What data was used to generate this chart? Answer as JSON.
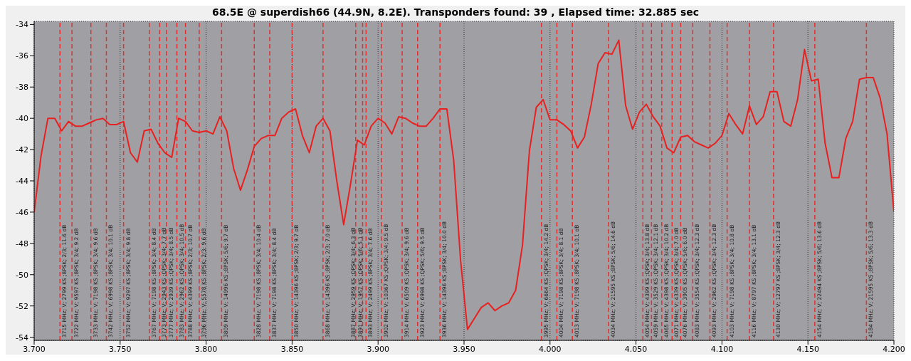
{
  "chart_data": {
    "type": "line",
    "title": "68.5E @ superdish66 (44.9N, 8.2E). Transponders found: 39 , Elapsed time: 32.885 sec",
    "x": [
      3.7,
      3.704,
      3.708,
      3.712,
      3.716,
      3.72,
      3.724,
      3.728,
      3.732,
      3.736,
      3.74,
      3.744,
      3.748,
      3.752,
      3.756,
      3.76,
      3.764,
      3.768,
      3.772,
      3.776,
      3.78,
      3.784,
      3.788,
      3.792,
      3.796,
      3.8,
      3.804,
      3.808,
      3.812,
      3.816,
      3.82,
      3.824,
      3.828,
      3.832,
      3.836,
      3.84,
      3.844,
      3.848,
      3.852,
      3.856,
      3.86,
      3.864,
      3.868,
      3.872,
      3.876,
      3.88,
      3.884,
      3.888,
      3.892,
      3.896,
      3.9,
      3.904,
      3.908,
      3.912,
      3.916,
      3.92,
      3.924,
      3.928,
      3.932,
      3.936,
      3.94,
      3.944,
      3.948,
      3.952,
      3.956,
      3.96,
      3.964,
      3.968,
      3.972,
      3.976,
      3.98,
      3.984,
      3.988,
      3.992,
      3.996,
      4.0,
      4.004,
      4.008,
      4.012,
      4.016,
      4.02,
      4.024,
      4.028,
      4.032,
      4.036,
      4.04,
      4.044,
      4.048,
      4.052,
      4.056,
      4.06,
      4.064,
      4.068,
      4.072,
      4.076,
      4.08,
      4.084,
      4.088,
      4.092,
      4.096,
      4.1,
      4.104,
      4.108,
      4.112,
      4.116,
      4.12,
      4.124,
      4.128,
      4.132,
      4.136,
      4.14,
      4.144,
      4.148,
      4.152,
      4.156,
      4.16,
      4.164,
      4.168,
      4.172,
      4.176,
      4.18,
      4.184,
      4.188,
      4.192,
      4.196,
      4.2
    ],
    "series": [
      {
        "color": "#e82020",
        "values": [
          -46,
          -42.4,
          -40,
          -40,
          -40.8,
          -40.2,
          -40.5,
          -40.5,
          -40.3,
          -40.1,
          -40,
          -40.4,
          -40.4,
          -40.2,
          -42.2,
          -42.8,
          -40.8,
          -40.7,
          -41.6,
          -42.2,
          -42.5,
          -40,
          -40.2,
          -40.8,
          -40.9,
          -40.8,
          -41,
          -39.9,
          -40.8,
          -43.2,
          -44.6,
          -43.3,
          -41.8,
          -41.3,
          -41.1,
          -41.1,
          -40,
          -39.6,
          -39.4,
          -41.1,
          -42.2,
          -40.5,
          -40,
          -40.8,
          -44,
          -46.8,
          -44.2,
          -41.4,
          -41.7,
          -40.5,
          -40,
          -40.3,
          -41,
          -39.9,
          -40,
          -40.3,
          -40.5,
          -40.5,
          -40,
          -39.4,
          -39.4,
          -42.7,
          -49.1,
          -53.5,
          -52.8,
          -52.1,
          -51.8,
          -52.3,
          -52,
          -51.8,
          -51,
          -48.1,
          -42.1,
          -39.3,
          -38.8,
          -40.1,
          -40.1,
          -40.4,
          -40.8,
          -41.9,
          -41.2,
          -39.1,
          -36.5,
          -35.8,
          -35.9,
          -35,
          -39.2,
          -40.7,
          -39.6,
          -39.1,
          -39.9,
          -40.5,
          -41.9,
          -42.2,
          -41.2,
          -41.1,
          -41.5,
          -41.7,
          -41.9,
          -41.6,
          -41.1,
          -39.7,
          -40.4,
          -41,
          -39.2,
          -40.4,
          -39.9,
          -38.3,
          -38.3,
          -40.2,
          -40.5,
          -38.8,
          -35.6,
          -37.6,
          -37.5,
          -41.6,
          -43.8,
          -43.8,
          -41.3,
          -40.2,
          -37.5,
          -37.4,
          -37.4,
          -38.7,
          -41,
          -46
        ]
      }
    ],
    "xlim": [
      3.7,
      4.2
    ],
    "xticks": [
      {
        "value": 3.7,
        "label": "3.700"
      },
      {
        "value": 3.75,
        "label": "3.750"
      },
      {
        "value": 3.8,
        "label": "3.800"
      },
      {
        "value": 3.85,
        "label": "3.850"
      },
      {
        "value": 3.9,
        "label": "3.900"
      },
      {
        "value": 3.95,
        "label": "3.950"
      },
      {
        "value": 4.0,
        "label": "4.000"
      },
      {
        "value": 4.05,
        "label": "4.050"
      },
      {
        "value": 4.1,
        "label": "4.100"
      },
      {
        "value": 4.15,
        "label": "4.150"
      },
      {
        "value": 4.2,
        "label": "4.200"
      }
    ],
    "ylim": [
      -54.2,
      -33.8
    ],
    "yticks": [
      -54,
      -52,
      -50,
      -48,
      -46,
      -44,
      -42,
      -40,
      -38,
      -36,
      -34
    ],
    "grid": true,
    "ref_lines": [
      {
        "axis": "x",
        "value": 3.715,
        "label": "3715 MHz; V; 2799 KS ;8PSK; 2/3; 11.6 dB",
        "color": "#e03030",
        "line_style": "dashed"
      },
      {
        "axis": "x",
        "value": 3.722,
        "label": "3722 MHz; V; 9597 KS ;8PSK; 3/4; 9.2 dB",
        "color": "#e03030",
        "line_style": "dashed"
      },
      {
        "axis": "x",
        "value": 3.733,
        "label": "3733 MHz; V; 7198 KS ;8PSK; 3/4; 9.6 dB",
        "color": "#e03030",
        "line_style": "dashed"
      },
      {
        "axis": "x",
        "value": 3.742,
        "label": "3742 MHz; V; 6998 KS ;8PSK; 3/4; 10.1 dB",
        "color": "#e03030",
        "line_style": "dashed"
      },
      {
        "axis": "x",
        "value": 3.752,
        "label": "3752 MHz; V; 9297 KS ;8PSK; 3/4; 9.8 dB",
        "color": "#e03030",
        "line_style": "dashed"
      },
      {
        "axis": "x",
        "value": 3.767,
        "label": "3767 MHz; V; 7198 KS ;8PSK; 3/4; 8.4 dB",
        "color": "#e03030",
        "line_style": "dashed"
      },
      {
        "axis": "x",
        "value": 3.773,
        "label": "3773 MHz; V; 2943 KS ;QPSK; 3/4; 7.7 dB",
        "color": "#e03030",
        "line_style": "dashed"
      },
      {
        "axis": "x",
        "value": 3.777,
        "label": "3777 MHz; V; 2939 KS ;QPSK; 3/4; 8.5 dB",
        "color": "#e03030",
        "line_style": "dashed"
      },
      {
        "axis": "x",
        "value": 3.783,
        "label": "3783 MHz; V; 2962 KS ;QPSK; 3/4; 10.5 dB",
        "color": "#e03030",
        "line_style": "dashed"
      },
      {
        "axis": "x",
        "value": 3.788,
        "label": "3788 MHz; V; 4399 KS ;8PSK; 2/3; 10.7 dB",
        "color": "#e03030",
        "line_style": "dashed"
      },
      {
        "axis": "x",
        "value": 3.796,
        "label": "3796 MHz; V; 5578 KS ;8PSK; 2/3; 9.6 dB",
        "color": "#e03030",
        "line_style": "dashed"
      },
      {
        "axis": "x",
        "value": 3.809,
        "label": "3809 MHz; V; 14996 KS ;8PSK; 5/6; 9.7 dB",
        "color": "#e03030",
        "line_style": "dashed"
      },
      {
        "axis": "x",
        "value": 3.828,
        "label": "3828 MHz; V; 7198 KS ;8PSK; 3/4; 10.4 dB",
        "color": "#e03030",
        "line_style": "dashed"
      },
      {
        "axis": "x",
        "value": 3.837,
        "label": "3837 MHz; V; 7198 KS ;8PSK; 3/4; 8.4 dB",
        "color": "#e03030",
        "line_style": "dashed"
      },
      {
        "axis": "x",
        "value": 3.85,
        "label": "3850 MHz; V; 14396 KS ;8PSK; 2/3; 9.7 dB",
        "color": "#e03030",
        "line_style": "dashed"
      },
      {
        "axis": "x",
        "value": 3.868,
        "label": "3868 MHz; V; 14396 KS ;8PSK; 2/3; 7.0 dB",
        "color": "#e03030",
        "line_style": "dashed"
      },
      {
        "axis": "x",
        "value": 3.887,
        "label": "3887 MHz; V; 2959 KS ;QPSK; 3/4; 6.3 dB",
        "color": "#e03030",
        "line_style": "dashed"
      },
      {
        "axis": "x",
        "value": 3.891,
        "label": "3891 MHz; V; 1957 KS ;QPSK; 5/6; 5.1 dB",
        "color": "#e03030",
        "line_style": "dashed"
      },
      {
        "axis": "x",
        "value": 3.893,
        "label": "3893 MHz; V; 2499 KS ;8PSK; 3/4; 7.6 dB",
        "color": "#e03030",
        "line_style": "dashed"
      },
      {
        "axis": "x",
        "value": 3.902,
        "label": "3902 MHz; V; 10367 KS ;QPSK; 3/4; 9.5 dB",
        "color": "#e03030",
        "line_style": "dashed"
      },
      {
        "axis": "x",
        "value": 3.914,
        "label": "3914 MHz; V; 6509 KS ;QPSK; 3/4; 9.6 dB",
        "color": "#e03030",
        "line_style": "dashed"
      },
      {
        "axis": "x",
        "value": 3.923,
        "label": "3923 MHz; V; 6998 KS ;QPSK; 5/6; 9.5 dB",
        "color": "#e03030",
        "line_style": "dashed"
      },
      {
        "axis": "x",
        "value": 3.936,
        "label": "3936 MHz; V; 14396 KS ;8PSK; 3/4; 10.0 dB",
        "color": "#e03030",
        "line_style": "dashed"
      },
      {
        "axis": "x",
        "value": 3.995,
        "label": "3995 MHz; V; 6664 KS ;QPSK; 3/4; 14.2 dB",
        "color": "#e03030",
        "line_style": "dashed"
      },
      {
        "axis": "x",
        "value": 4.004,
        "label": "4004 MHz; V; 7198 KS ;8PSK; 3/4; 8.1 dB",
        "color": "#e03030",
        "line_style": "dashed"
      },
      {
        "axis": "x",
        "value": 4.013,
        "label": "4013 MHz; V; 7198 KS ;8PSK; 3/4; 10.1 dB",
        "color": "#e03030",
        "line_style": "dashed"
      },
      {
        "axis": "x",
        "value": 4.034,
        "label": "4034 MHz; V; 21595 KS ;8PSK; 5/6; 14.6 dB",
        "color": "#e03030",
        "line_style": "dashed"
      },
      {
        "axis": "x",
        "value": 4.054,
        "label": "4054 MHz; V; 4399 KS ;QPSK; 3/4; 13.8 dB",
        "color": "#e03030",
        "line_style": "dashed"
      },
      {
        "axis": "x",
        "value": 4.059,
        "label": "4059 MHz; V; 3529 KS ;QPSK; 3/4; 12.1 dB",
        "color": "#e03030",
        "line_style": "dashed"
      },
      {
        "axis": "x",
        "value": 4.065,
        "label": "4065 MHz; V; 4398 KS ;QPSK; 3/4; 10.2 dB",
        "color": "#e03030",
        "line_style": "dashed"
      },
      {
        "axis": "x",
        "value": 4.071,
        "label": "4071 MHz; V; 4339 KS ;QPSK; 3/4; 7.0 dB",
        "color": "#e03030",
        "line_style": "dashed"
      },
      {
        "axis": "x",
        "value": 4.076,
        "label": "4076 MHz; V; 3905 KS ;QPSK; 5/6; 6.0 dB",
        "color": "#e03030",
        "line_style": "dashed"
      },
      {
        "axis": "x",
        "value": 4.083,
        "label": "4083 MHz; V; 3554 KS ;QPSK; 3/4; 12.3 dB",
        "color": "#e03030",
        "line_style": "dashed"
      },
      {
        "axis": "x",
        "value": 4.093,
        "label": "4093 MHz; V; 2962 KS ;QPSK; 3/4; 12.3 dB",
        "color": "#e03030",
        "line_style": "dashed"
      },
      {
        "axis": "x",
        "value": 4.103,
        "label": "4103 MHz; V; 7198 KS ;8PSK; 3/4; 10.8 dB",
        "color": "#e03030",
        "line_style": "dashed"
      },
      {
        "axis": "x",
        "value": 4.116,
        "label": "4116 MHz; V; 8797 KS ;8PSK; 3/4; 13.1 dB",
        "color": "#e03030",
        "line_style": "dashed"
      },
      {
        "axis": "x",
        "value": 4.13,
        "label": "4130 MHz; V; 12797 KS ;8PSK; 3/4; 12.3 dB",
        "color": "#e03030",
        "line_style": "dashed"
      },
      {
        "axis": "x",
        "value": 4.154,
        "label": "4154 MHz; V; 22494 KS ;8PSK; 5/6; 13.6 dB",
        "color": "#e03030",
        "line_style": "dashed"
      },
      {
        "axis": "x",
        "value": 4.184,
        "label": "4184 MHz; V; 21595 KS ;8PSK; 5/6; 13.3 dB",
        "color": "#e03030",
        "line_style": "dashed"
      }
    ]
  }
}
